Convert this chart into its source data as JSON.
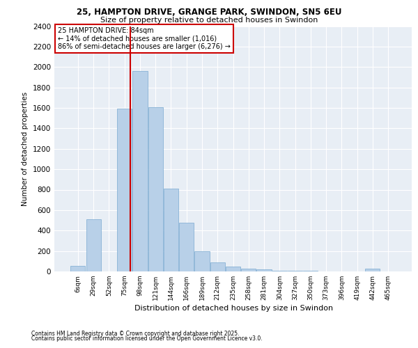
{
  "title1": "25, HAMPTON DRIVE, GRANGE PARK, SWINDON, SN5 6EU",
  "title2": "Size of property relative to detached houses in Swindon",
  "xlabel": "Distribution of detached houses by size in Swindon",
  "ylabel": "Number of detached properties",
  "bar_labels": [
    "6sqm",
    "29sqm",
    "52sqm",
    "75sqm",
    "98sqm",
    "121sqm",
    "144sqm",
    "166sqm",
    "189sqm",
    "212sqm",
    "235sqm",
    "258sqm",
    "281sqm",
    "304sqm",
    "327sqm",
    "350sqm",
    "373sqm",
    "396sqm",
    "419sqm",
    "442sqm",
    "465sqm"
  ],
  "bar_values": [
    55,
    510,
    0,
    1590,
    1960,
    1610,
    810,
    480,
    195,
    90,
    45,
    25,
    20,
    10,
    5,
    5,
    0,
    0,
    0,
    25,
    0
  ],
  "bar_color": "#b8d0e8",
  "bar_edgecolor": "#7aaad0",
  "background_color": "#e8eef5",
  "grid_color": "#ffffff",
  "annotation_text": "25 HAMPTON DRIVE: 84sqm\n← 14% of detached houses are smaller (1,016)\n86% of semi-detached houses are larger (6,276) →",
  "bins_sqm": [
    6,
    29,
    52,
    75,
    98,
    121,
    144,
    166,
    189,
    212,
    235,
    258,
    281,
    304,
    327,
    350,
    373,
    396,
    419,
    442,
    465
  ],
  "property_sqm": 84,
  "vline_color": "#cc0000",
  "ylim_max": 2400,
  "yticks": [
    0,
    200,
    400,
    600,
    800,
    1000,
    1200,
    1400,
    1600,
    1800,
    2000,
    2200,
    2400
  ],
  "footer1": "Contains HM Land Registry data © Crown copyright and database right 2025.",
  "footer2": "Contains public sector information licensed under the Open Government Licence v3.0."
}
